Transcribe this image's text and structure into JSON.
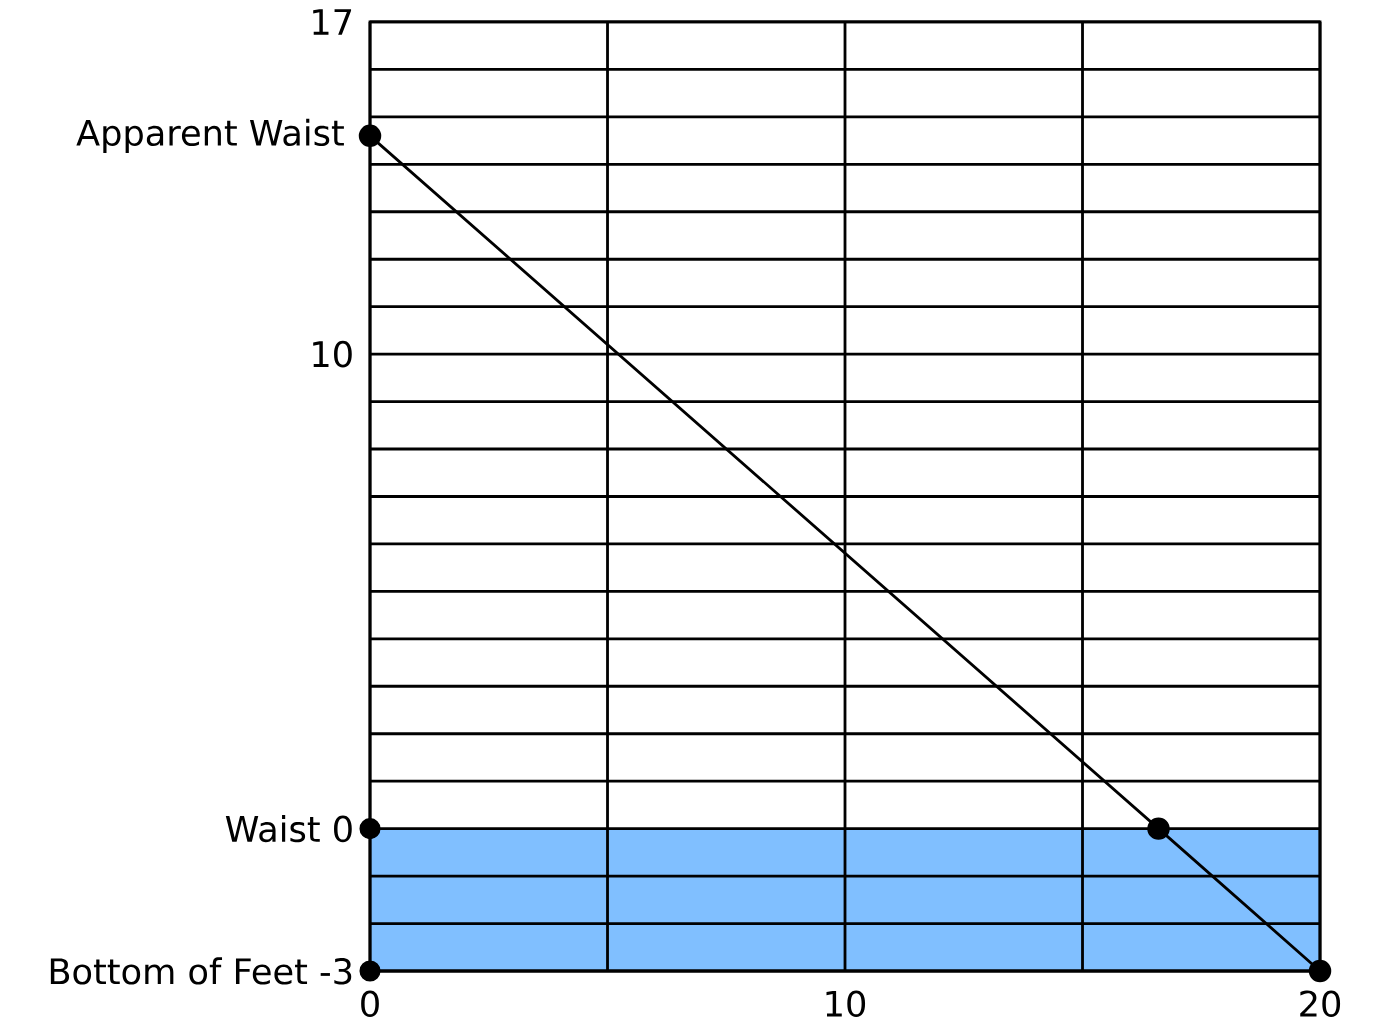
{
  "chart_data": {
    "type": "line",
    "series": [
      {
        "color": "#000000",
        "x": [
          0,
          16.6,
          20
        ],
        "values": [
          14.6,
          0,
          -3
        ]
      },
      {
        "type": "scatter",
        "color": "#000000",
        "x": [
          0,
          0
        ],
        "values": [
          0,
          -3
        ]
      }
    ],
    "xlim": [
      0,
      20
    ],
    "ylim": [
      -3,
      17
    ],
    "xticks": [
      0,
      {
        "value": 5,
        "label": null
      },
      10,
      {
        "value": 15,
        "label": null
      },
      20
    ],
    "yticks": [
      {
        "value": -3,
        "label": "Bottom of Feet -3"
      },
      {
        "value": -2,
        "label": null
      },
      {
        "value": -1,
        "label": null
      },
      {
        "value": 0,
        "label": "Waist 0"
      },
      {
        "value": 1,
        "label": null
      },
      {
        "value": 2,
        "label": null
      },
      {
        "value": 3,
        "label": null
      },
      {
        "value": 4,
        "label": null
      },
      {
        "value": 5,
        "label": null
      },
      {
        "value": 6,
        "label": null
      },
      {
        "value": 7,
        "label": null
      },
      {
        "value": 8,
        "label": null
      },
      {
        "value": 9,
        "label": null
      },
      10,
      {
        "value": 11,
        "label": null
      },
      {
        "value": 12,
        "label": null
      },
      {
        "value": 13,
        "label": null
      },
      {
        "value": 14,
        "label": null
      },
      {
        "value": 15,
        "label": null
      },
      {
        "value": 16,
        "label": null
      },
      17
    ],
    "annotations": [
      {
        "text": "Apparent Waist",
        "x": 0,
        "y": 14.6
      }
    ],
    "bands": [
      {
        "axis": "y",
        "from": -3,
        "to": 0,
        "color": "#80bfff"
      }
    ],
    "grid": true,
    "marker": "circle"
  }
}
